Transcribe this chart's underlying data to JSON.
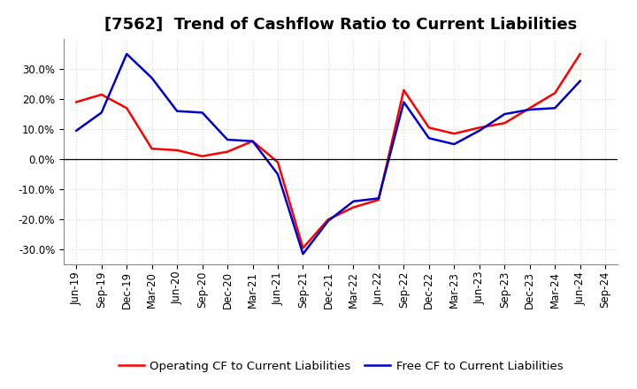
{
  "title": "[7562]  Trend of Cashflow Ratio to Current Liabilities",
  "x_labels": [
    "Jun-19",
    "Sep-19",
    "Dec-19",
    "Mar-20",
    "Jun-20",
    "Sep-20",
    "Dec-20",
    "Mar-21",
    "Jun-21",
    "Sep-21",
    "Dec-21",
    "Mar-22",
    "Jun-22",
    "Sep-22",
    "Dec-22",
    "Mar-23",
    "Jun-23",
    "Sep-23",
    "Dec-23",
    "Mar-24",
    "Jun-24",
    "Sep-24"
  ],
  "operating_cf": [
    19.0,
    21.5,
    17.0,
    3.5,
    3.0,
    1.0,
    2.5,
    6.0,
    -1.0,
    -29.5,
    -20.0,
    -16.0,
    -13.5,
    23.0,
    10.5,
    8.5,
    10.5,
    12.0,
    17.0,
    22.0,
    35.0,
    null
  ],
  "free_cf": [
    9.5,
    15.5,
    35.0,
    27.0,
    16.0,
    15.5,
    6.5,
    6.0,
    -5.0,
    -31.5,
    -20.5,
    -14.0,
    -13.0,
    19.0,
    7.0,
    5.0,
    9.5,
    15.0,
    16.5,
    17.0,
    26.0,
    null
  ],
  "ylim": [
    -35,
    40
  ],
  "yticks": [
    -30,
    -20,
    -10,
    0,
    10,
    20,
    30
  ],
  "operating_color": "#ff0000",
  "free_color": "#0000cc",
  "background_color": "#ffffff",
  "grid_color": "#aaaaaa",
  "legend_operating": "Operating CF to Current Liabilities",
  "legend_free": "Free CF to Current Liabilities",
  "title_fontsize": 13,
  "axis_fontsize": 8.5,
  "legend_fontsize": 9.5
}
